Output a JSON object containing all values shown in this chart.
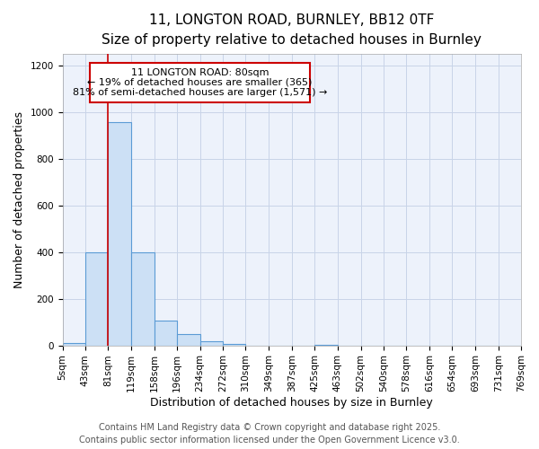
{
  "title_line1": "11, LONGTON ROAD, BURNLEY, BB12 0TF",
  "title_line2": "Size of property relative to detached houses in Burnley",
  "xlabel": "Distribution of detached houses by size in Burnley",
  "ylabel": "Number of detached properties",
  "bar_edges": [
    5,
    43,
    81,
    119,
    158,
    196,
    234,
    272,
    310,
    349,
    387,
    425,
    463,
    502,
    540,
    578,
    616,
    654,
    693,
    731,
    769
  ],
  "bar_heights": [
    10,
    400,
    960,
    400,
    105,
    50,
    18,
    5,
    0,
    0,
    0,
    1,
    0,
    0,
    0,
    0,
    0,
    0,
    0,
    0
  ],
  "bar_face_color": "#cce0f5",
  "bar_edge_color": "#5b9bd5",
  "property_line_x": 81,
  "property_line_color": "#cc0000",
  "annotation_line1": "11 LONGTON ROAD: 80sqm",
  "annotation_line2": "← 19% of detached houses are smaller (365)",
  "annotation_line3": "81% of semi-detached houses are larger (1,571) →",
  "annotation_box_color": "#cc0000",
  "annotation_text_color": "#000000",
  "ylim": [
    0,
    1250
  ],
  "yticks": [
    0,
    200,
    400,
    600,
    800,
    1000,
    1200
  ],
  "xtick_labels": [
    "5sqm",
    "43sqm",
    "81sqm",
    "119sqm",
    "158sqm",
    "196sqm",
    "234sqm",
    "272sqm",
    "310sqm",
    "349sqm",
    "387sqm",
    "425sqm",
    "463sqm",
    "502sqm",
    "540sqm",
    "578sqm",
    "616sqm",
    "654sqm",
    "693sqm",
    "731sqm",
    "769sqm"
  ],
  "footer_line1": "Contains HM Land Registry data © Crown copyright and database right 2025.",
  "footer_line2": "Contains public sector information licensed under the Open Government Licence v3.0.",
  "background_color": "#edf2fb",
  "grid_color": "#c8d4e8",
  "title_fontsize": 11,
  "subtitle_fontsize": 10,
  "axis_label_fontsize": 9,
  "tick_fontsize": 7.5,
  "footer_fontsize": 7,
  "annotation_fontsize": 8
}
